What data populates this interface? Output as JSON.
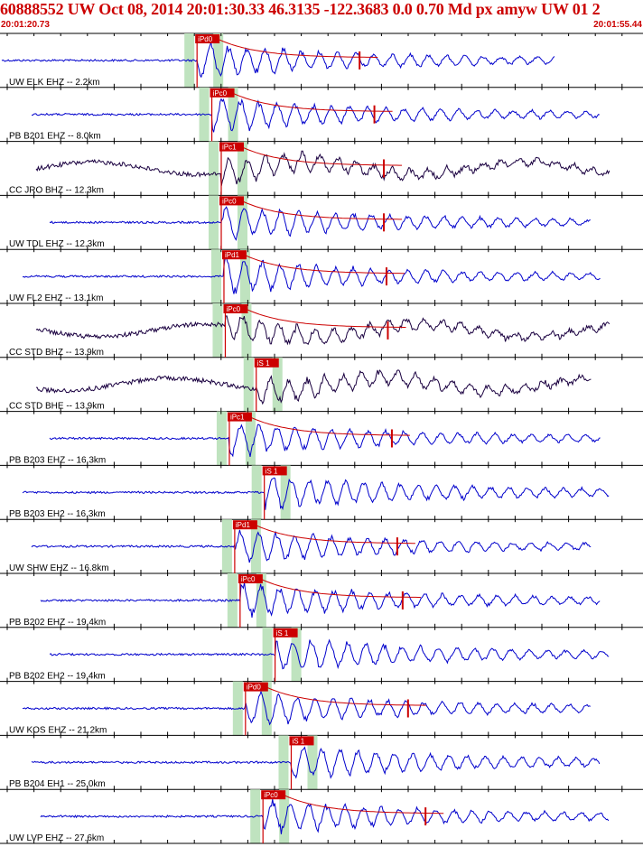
{
  "header": {
    "title": "60888552 UW Oct 08, 2014 20:01:30.33   46.3135 -122.3683  0.0 0.70 Md px amyw UW 01   2",
    "start_time": "20:01:20.73",
    "end_time": "20:01:55.44"
  },
  "colors": {
    "accent": "#cc0000",
    "short_period_trace": "#0000cc",
    "broadband_trace": "#1a0040",
    "pick_window": "#bfe3bf",
    "coda_curve": "#cc0000"
  },
  "chart_data": {
    "type": "seismogram",
    "time_range": [
      "20:01:20.73",
      "20:01:55.44"
    ],
    "traces": [
      {
        "label": "UW ELK EHZ -- 2.2km",
        "channel_type": "short-period",
        "pick": "iPd0",
        "pick_time": 8.2
      },
      {
        "label": "PB B201 EHZ -- 8.0km",
        "channel_type": "short-period",
        "pick": "iPc0",
        "pick_time": 9.3
      },
      {
        "label": "CC JRO BHZ -- 12.3km",
        "channel_type": "broadband",
        "pick": "iPc1",
        "pick_time": 10.0
      },
      {
        "label": "UW TDL EHZ -- 12.3km",
        "channel_type": "short-period",
        "pick": "iPc0",
        "pick_time": 10.0
      },
      {
        "label": "UW FL2 EHZ -- 13.1km",
        "channel_type": "short-period",
        "pick": "iPd1",
        "pick_time": 10.2
      },
      {
        "label": "CC STD BHZ -- 13.9km",
        "channel_type": "broadband",
        "pick": "iPc0",
        "pick_time": 10.3
      },
      {
        "label": "CC STD BHE -- 13.9km",
        "channel_type": "broadband",
        "pick": "iS 1",
        "pick_time": 12.6
      },
      {
        "label": "PB B203 EHZ -- 16.3km",
        "channel_type": "short-period",
        "pick": "iPc1",
        "pick_time": 10.6
      },
      {
        "label": "PB B203 EH2 -- 16.3km",
        "channel_type": "short-period",
        "pick": "iS 1",
        "pick_time": 13.2
      },
      {
        "label": "UW SHW EHZ -- 16.8km",
        "channel_type": "short-period",
        "pick": "iPd1",
        "pick_time": 11.0
      },
      {
        "label": "PB B202 EHZ -- 19.4km",
        "channel_type": "short-period",
        "pick": "iPc0",
        "pick_time": 11.4
      },
      {
        "label": "PB B202 EH2 -- 19.4km",
        "channel_type": "short-period",
        "pick": "iS 1",
        "pick_time": 14.0
      },
      {
        "label": "UW KOS EHZ -- 21.2km",
        "channel_type": "short-period",
        "pick": "iPd0",
        "pick_time": 11.8
      },
      {
        "label": "PB B204 EH1 -- 25.0km",
        "channel_type": "short-period",
        "pick": "iS 1",
        "pick_time": 15.2
      },
      {
        "label": "UW LVP EHZ -- 27.6km",
        "channel_type": "short-period",
        "pick": "iPc0",
        "pick_time": 13.1
      }
    ]
  }
}
